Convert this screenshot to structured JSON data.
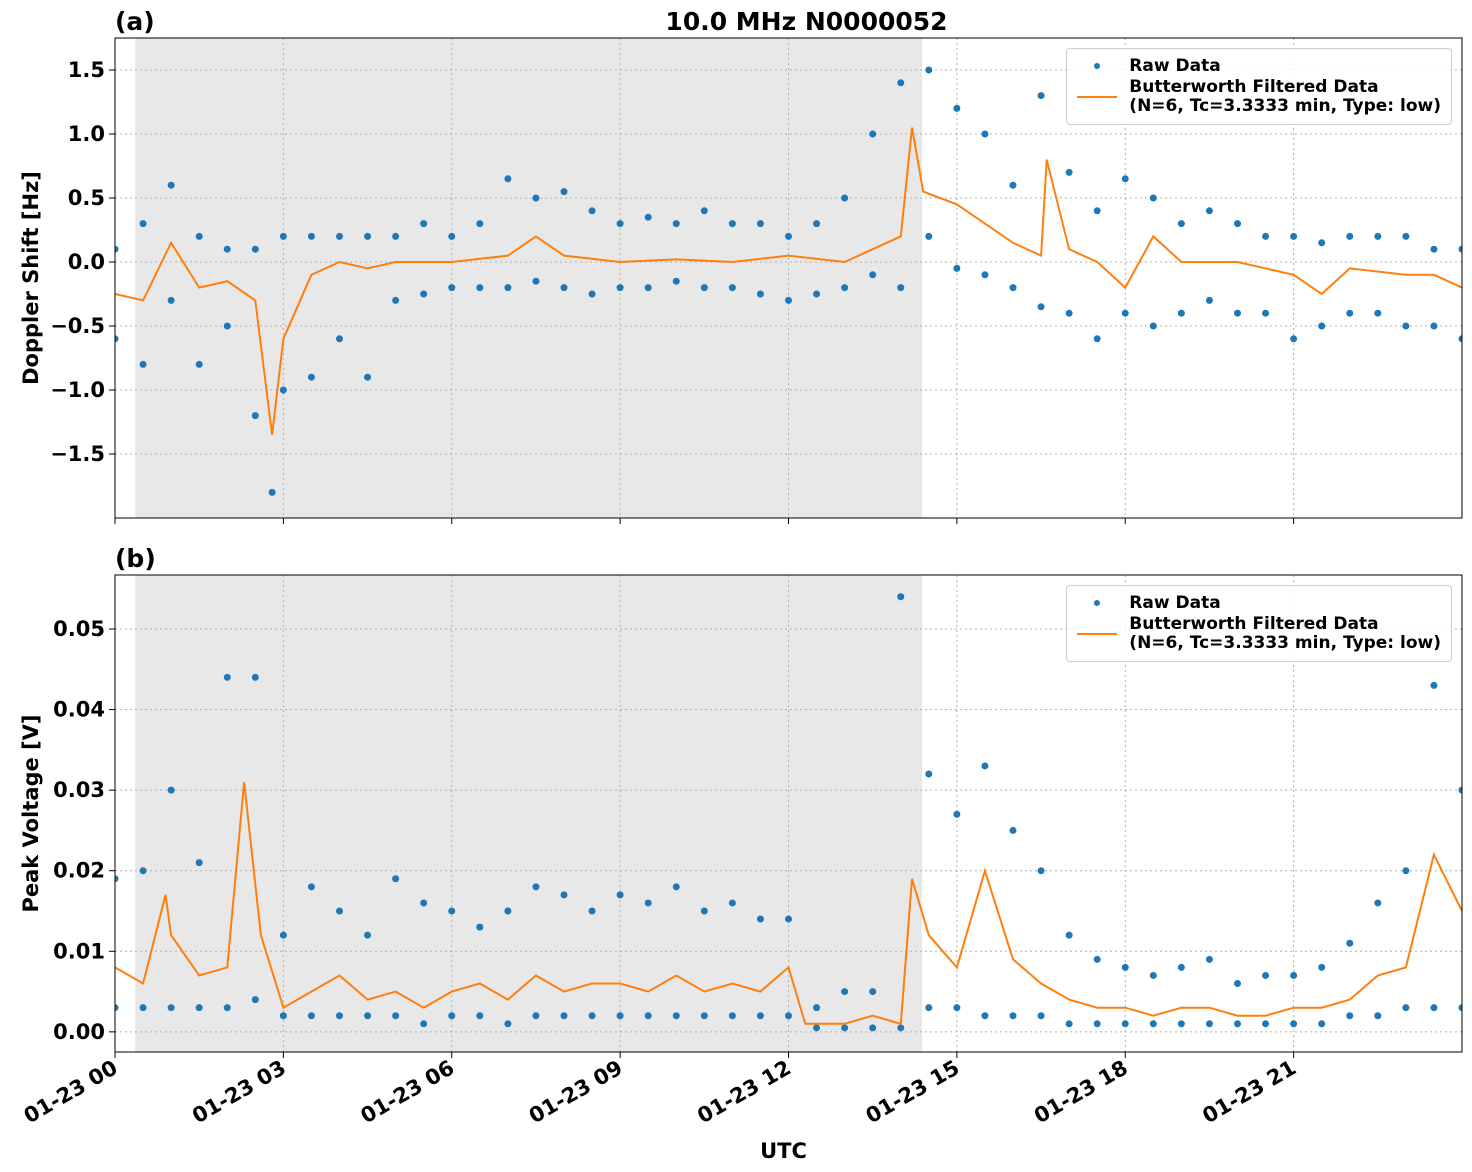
{
  "chart_data": [
    {
      "type": "line",
      "panel_label": "(a)",
      "title": "10.0 MHz N0000052",
      "ylabel": "Doppler Shift [Hz]",
      "xlim": [
        0,
        24
      ],
      "xticks": [
        0,
        3,
        6,
        9,
        12,
        15,
        18,
        21
      ],
      "ylim": [
        -2.0,
        1.75
      ],
      "yticks": [
        {
          "value": -1.5,
          "label": "−1.5"
        },
        {
          "value": -1.0,
          "label": "−1.0"
        },
        {
          "value": -0.5,
          "label": "−0.5"
        },
        {
          "value": 0,
          "label": "0.0"
        },
        0.5,
        {
          "value": 1.0,
          "label": "1.0"
        },
        1.5
      ],
      "grid": true,
      "legend": "upper right",
      "shade_x": [
        0.36,
        14.38
      ],
      "series": [
        {
          "name": "Raw Data",
          "color": "#1f77b4",
          "style": "markers",
          "x": [
            0,
            0.5,
            1,
            1.5,
            2,
            2.5,
            3,
            3.5,
            4,
            4.5,
            5,
            5.5,
            6,
            6.5,
            7,
            7.5,
            8,
            8.5,
            9,
            9.5,
            10,
            10.5,
            11,
            11.5,
            12,
            12.5,
            13,
            13.5,
            14,
            14.5,
            15,
            15.5,
            16,
            16.5,
            17,
            17.5,
            18,
            18.5,
            19,
            19.5,
            20,
            20.5,
            21,
            21.5,
            22,
            22.5,
            23,
            23.5,
            24,
            0,
            0.5,
            1,
            1.5,
            2,
            2.5,
            3,
            3.5,
            4,
            4.5,
            5,
            5.5,
            6,
            6.5,
            7,
            7.5,
            8,
            8.5,
            9,
            9.5,
            10,
            10.5,
            11,
            11.5,
            12,
            12.5,
            13,
            13.5,
            14,
            14.5,
            15,
            15.5,
            16,
            16.5,
            17,
            17.5,
            18,
            18.5,
            19,
            19.5,
            20,
            20.5,
            21,
            21.5,
            22,
            22.5,
            23,
            23.5,
            24,
            2.8
          ],
          "values": [
            0.1,
            0.3,
            0.6,
            0.2,
            0.1,
            0.1,
            0.2,
            0.2,
            0.2,
            0.2,
            0.2,
            0.3,
            0.2,
            0.3,
            0.65,
            0.5,
            0.55,
            0.4,
            0.3,
            0.35,
            0.3,
            0.4,
            0.3,
            0.3,
            0.2,
            0.3,
            0.5,
            1.0,
            1.4,
            1.5,
            1.2,
            1.0,
            0.6,
            1.3,
            0.7,
            0.4,
            0.65,
            0.5,
            0.3,
            0.4,
            0.3,
            0.2,
            0.2,
            0.15,
            0.2,
            0.2,
            0.2,
            0.1,
            0.1,
            -0.6,
            -0.8,
            -0.3,
            -0.8,
            -0.5,
            -1.2,
            -1.0,
            -0.9,
            -0.6,
            -0.9,
            -0.3,
            -0.25,
            -0.2,
            -0.2,
            -0.2,
            -0.15,
            -0.2,
            -0.25,
            -0.2,
            -0.2,
            -0.15,
            -0.2,
            -0.2,
            -0.25,
            -0.3,
            -0.25,
            -0.2,
            -0.1,
            -0.2,
            0.2,
            -0.05,
            -0.1,
            -0.2,
            -0.35,
            -0.4,
            -0.6,
            -0.4,
            -0.5,
            -0.4,
            -0.3,
            -0.4,
            -0.4,
            -0.6,
            -0.5,
            -0.4,
            -0.4,
            -0.5,
            -0.5,
            -0.6,
            -1.8
          ]
        },
        {
          "name": "Butterworth Filtered Data\n(N=6, Tc=3.3333 min, Type: low)",
          "color": "#ff7f0e",
          "style": "line",
          "x": [
            0,
            0.5,
            1,
            1.5,
            2,
            2.5,
            2.8,
            3,
            3.5,
            4,
            4.5,
            5,
            6,
            7,
            7.5,
            8,
            9,
            10,
            11,
            12,
            13,
            13.5,
            14,
            14.2,
            14.4,
            15,
            15.5,
            16,
            16.5,
            16.6,
            17,
            17.5,
            18,
            18.5,
            19,
            20,
            21,
            21.5,
            22,
            23,
            23.5,
            24
          ],
          "values": [
            -0.25,
            -0.3,
            0.15,
            -0.2,
            -0.15,
            -0.3,
            -1.35,
            -0.6,
            -0.1,
            0,
            -0.05,
            0.0,
            0.0,
            0.05,
            0.2,
            0.05,
            0.0,
            0.02,
            0.0,
            0.05,
            0.0,
            0.1,
            0.2,
            1.05,
            0.55,
            0.45,
            0.3,
            0.15,
            0.05,
            0.8,
            0.1,
            0.0,
            -0.2,
            0.2,
            0.0,
            0.0,
            -0.1,
            -0.25,
            -0.05,
            -0.1,
            -0.1,
            -0.2
          ]
        }
      ]
    },
    {
      "type": "line",
      "panel_label": "(b)",
      "ylabel": "Peak Voltage [V]",
      "xlabel": "UTC",
      "xlim": [
        0,
        24
      ],
      "xticks": [
        {
          "value": 0,
          "label": "01-23 00"
        },
        {
          "value": 3,
          "label": "01-23 03"
        },
        {
          "value": 6,
          "label": "01-23 06"
        },
        {
          "value": 9,
          "label": "01-23 09"
        },
        {
          "value": 12,
          "label": "01-23 12"
        },
        {
          "value": 15,
          "label": "01-23 15"
        },
        {
          "value": 18,
          "label": "01-23 18"
        },
        {
          "value": 21,
          "label": "01-23 21"
        }
      ],
      "ylim": [
        -0.0025,
        0.0567
      ],
      "yticks": [
        {
          "value": 0,
          "label": "0.00"
        },
        0.01,
        0.02,
        0.03,
        0.04,
        0.05
      ],
      "grid": true,
      "legend": "upper right",
      "shade_x": [
        0.36,
        14.38
      ],
      "series": [
        {
          "name": "Raw Data",
          "color": "#1f77b4",
          "style": "markers",
          "x": [
            0,
            0.5,
            1,
            1.5,
            2,
            2.5,
            3,
            3.5,
            4,
            4.5,
            5,
            5.5,
            6,
            6.5,
            7,
            7.5,
            8,
            8.5,
            9,
            9.5,
            10,
            10.5,
            11,
            11.5,
            12,
            12.5,
            13,
            13.5,
            14,
            14.5,
            15,
            15.5,
            16,
            16.5,
            17,
            17.5,
            18,
            18.5,
            19,
            19.5,
            20,
            20.5,
            21,
            21.5,
            22,
            22.5,
            23,
            23.5,
            24,
            0,
            0.5,
            1,
            1.5,
            2,
            2.5,
            3,
            3.5,
            4,
            4.5,
            5,
            5.5,
            6,
            6.5,
            7,
            7.5,
            8,
            8.5,
            9,
            9.5,
            10,
            10.5,
            11,
            11.5,
            12,
            12.5,
            13,
            13.5,
            14,
            14.5,
            15,
            15.5,
            16,
            16.5,
            17,
            17.5,
            18,
            18.5,
            19,
            19.5,
            20,
            20.5,
            21,
            21.5,
            22,
            22.5,
            23,
            23.5,
            24
          ],
          "values": [
            0.019,
            0.02,
            0.03,
            0.021,
            0.044,
            0.044,
            0.012,
            0.018,
            0.015,
            0.012,
            0.019,
            0.016,
            0.015,
            0.013,
            0.015,
            0.018,
            0.017,
            0.015,
            0.017,
            0.016,
            0.018,
            0.015,
            0.016,
            0.014,
            0.014,
            0.003,
            0.005,
            0.005,
            0.054,
            0.032,
            0.027,
            0.033,
            0.025,
            0.02,
            0.012,
            0.009,
            0.008,
            0.007,
            0.008,
            0.009,
            0.006,
            0.007,
            0.007,
            0.008,
            0.011,
            0.016,
            0.02,
            0.043,
            0.03,
            0.003,
            0.003,
            0.003,
            0.003,
            0.003,
            0.004,
            0.002,
            0.002,
            0.002,
            0.002,
            0.002,
            0.001,
            0.002,
            0.002,
            0.001,
            0.002,
            0.002,
            0.002,
            0.002,
            0.002,
            0.002,
            0.002,
            0.002,
            0.002,
            0.002,
            0.0005,
            0.0005,
            0.0005,
            0.0005,
            0.003,
            0.003,
            0.002,
            0.002,
            0.002,
            0.001,
            0.001,
            0.001,
            0.001,
            0.001,
            0.001,
            0.001,
            0.001,
            0.001,
            0.001,
            0.002,
            0.002,
            0.003,
            0.003,
            0.003
          ]
        },
        {
          "name": "Butterworth Filtered Data\n(N=6, Tc=3.3333 min, Type: low)",
          "color": "#ff7f0e",
          "style": "line",
          "x": [
            0,
            0.5,
            0.9,
            1,
            1.5,
            2,
            2.3,
            2.6,
            3,
            3.5,
            4,
            4.5,
            5,
            5.5,
            6,
            6.5,
            7,
            7.5,
            8,
            8.5,
            9,
            9.5,
            10,
            10.5,
            11,
            11.5,
            12,
            12.3,
            13,
            13.5,
            14,
            14.2,
            14.5,
            15,
            15.5,
            16,
            16.5,
            17,
            17.5,
            18,
            18.5,
            19,
            19.5,
            20,
            20.5,
            21,
            21.5,
            22,
            22.5,
            23,
            23.5,
            24
          ],
          "values": [
            0.008,
            0.006,
            0.017,
            0.012,
            0.007,
            0.008,
            0.031,
            0.012,
            0.003,
            0.005,
            0.007,
            0.004,
            0.005,
            0.003,
            0.005,
            0.006,
            0.004,
            0.007,
            0.005,
            0.006,
            0.006,
            0.005,
            0.007,
            0.005,
            0.006,
            0.005,
            0.008,
            0.001,
            0.001,
            0.002,
            0.001,
            0.019,
            0.012,
            0.008,
            0.02,
            0.009,
            0.006,
            0.004,
            0.003,
            0.003,
            0.002,
            0.003,
            0.003,
            0.002,
            0.002,
            0.003,
            0.003,
            0.004,
            0.007,
            0.008,
            0.022,
            0.015
          ]
        }
      ]
    }
  ]
}
